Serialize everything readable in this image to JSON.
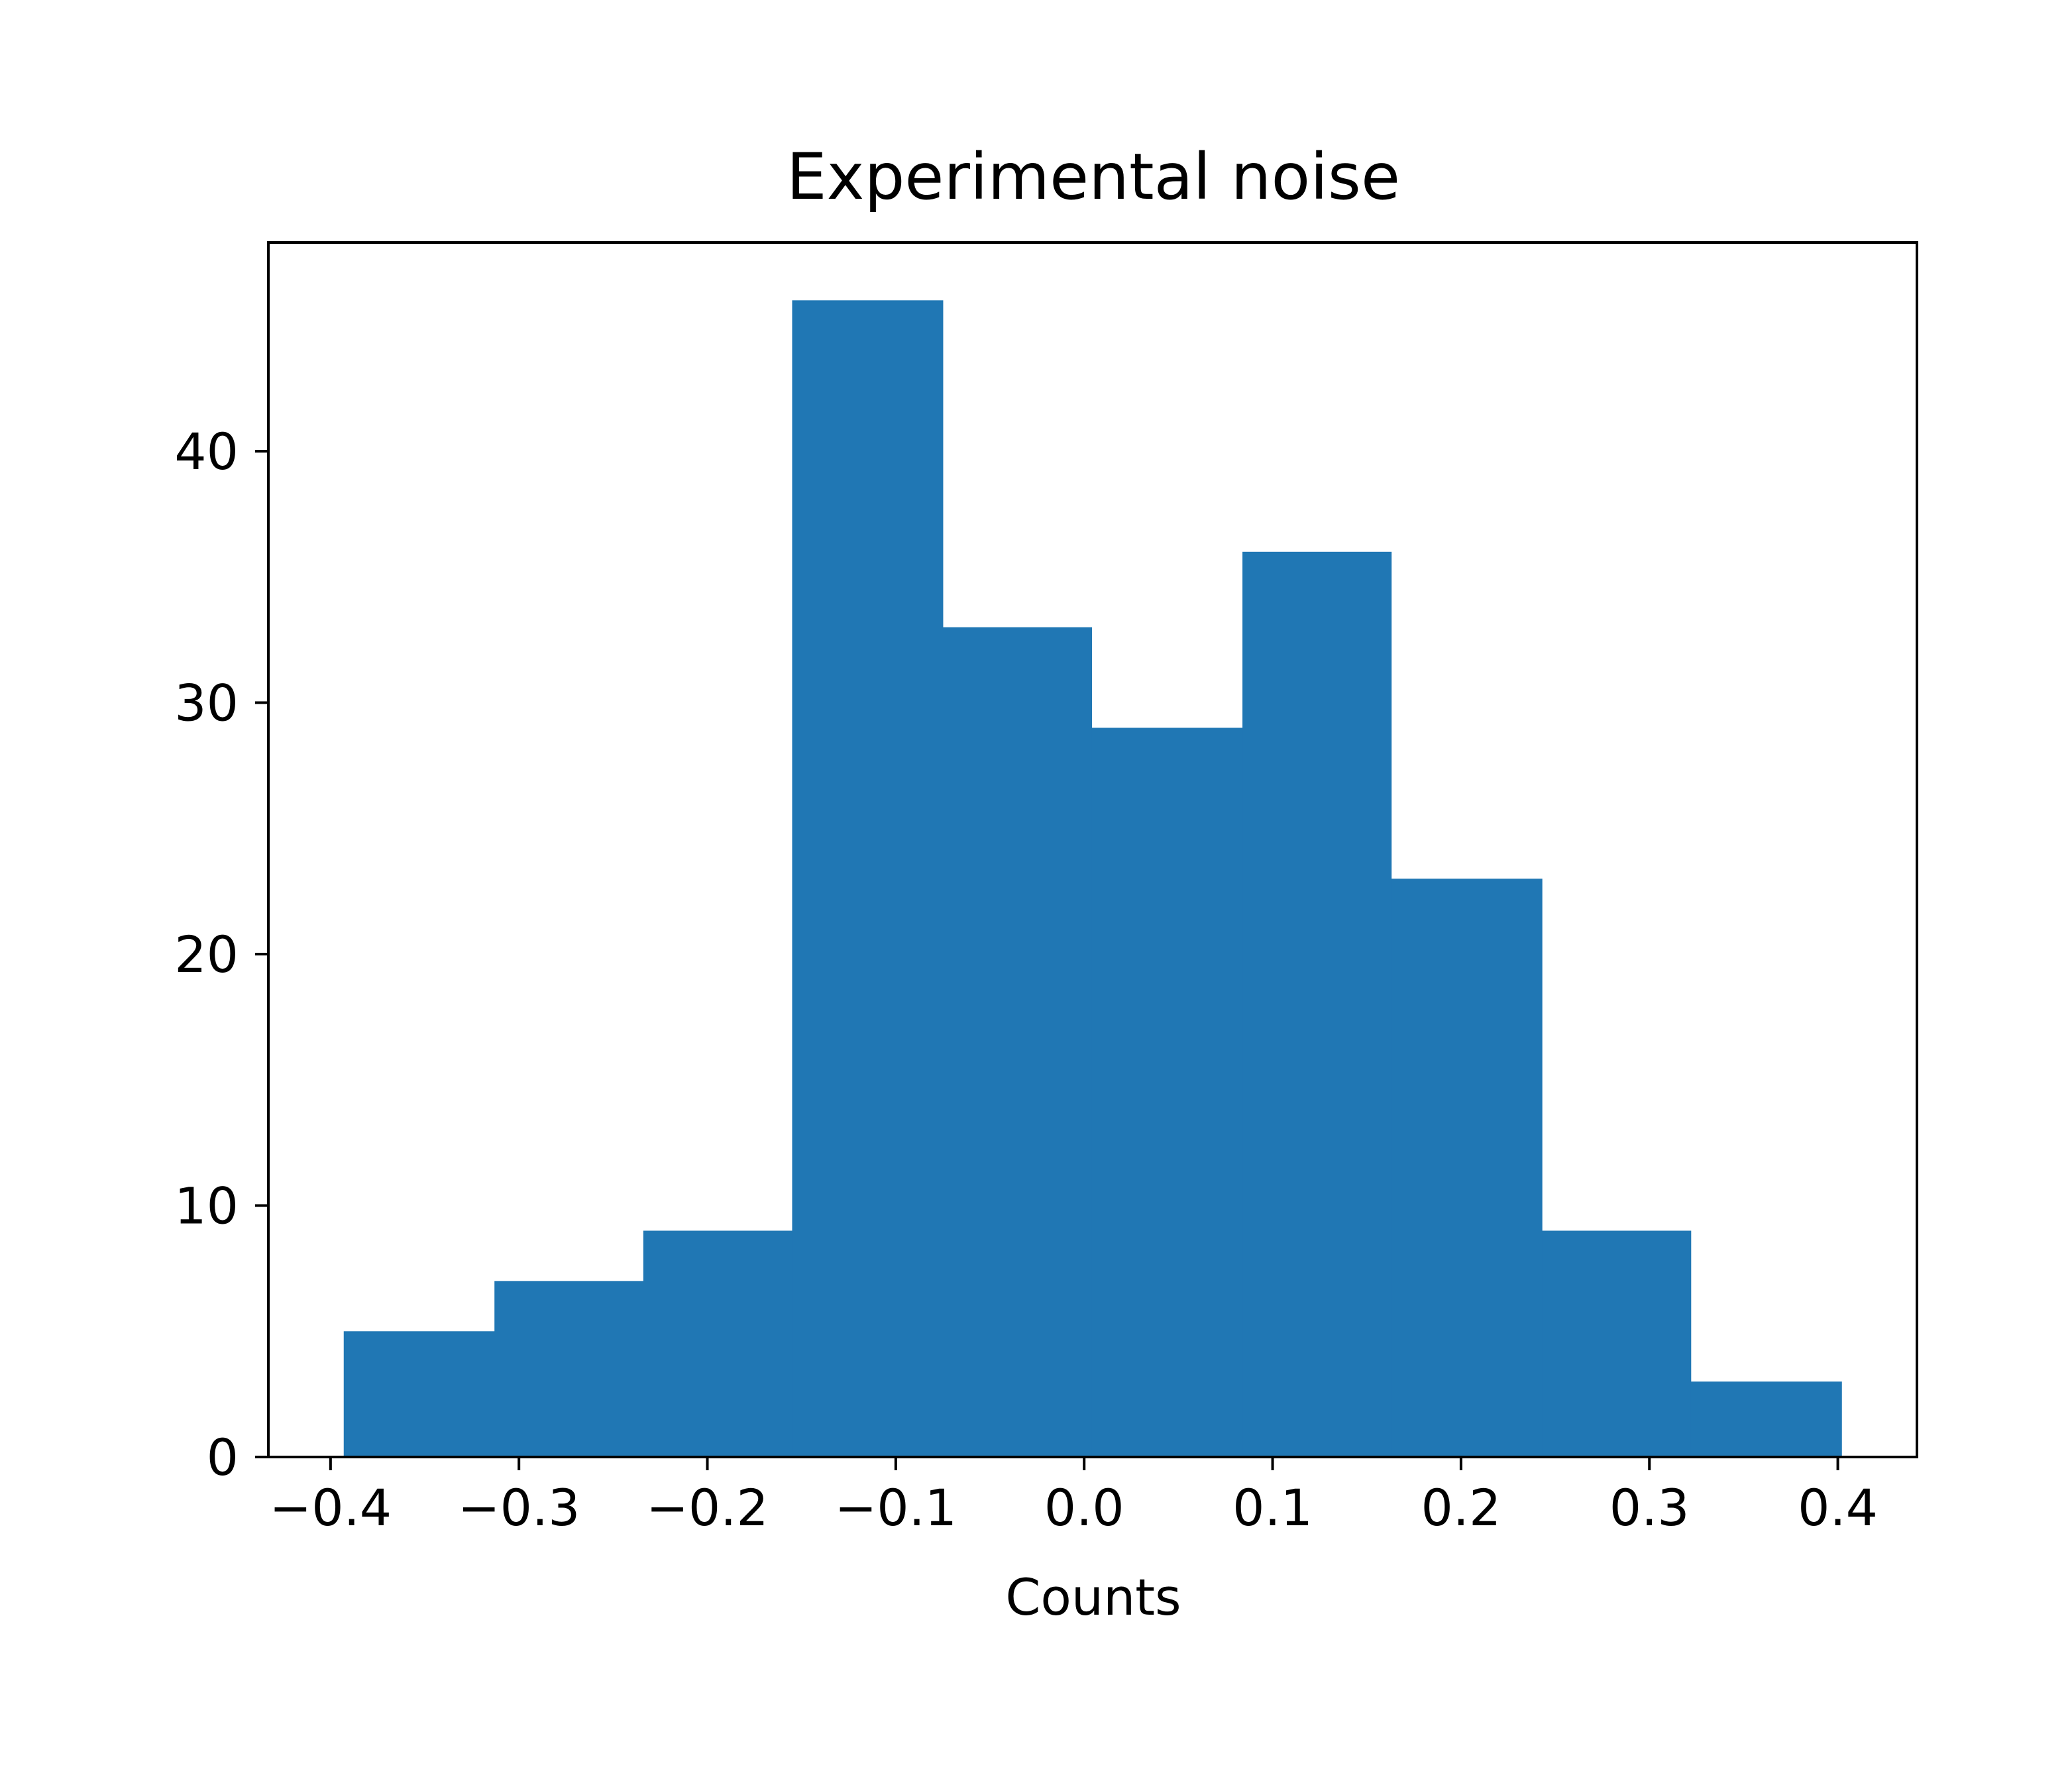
{
  "chart_data": {
    "type": "bar",
    "title": "Experimental noise",
    "xlabel": "Counts",
    "ylabel": "",
    "bins": [
      {
        "x0": -0.393,
        "x1": -0.313,
        "count": 5
      },
      {
        "x0": -0.313,
        "x1": -0.234,
        "count": 7
      },
      {
        "x0": -0.234,
        "x1": -0.155,
        "count": 9
      },
      {
        "x0": -0.155,
        "x1": -0.075,
        "count": 46
      },
      {
        "x0": -0.075,
        "x1": 0.004,
        "count": 33
      },
      {
        "x0": 0.004,
        "x1": 0.084,
        "count": 29
      },
      {
        "x0": 0.084,
        "x1": 0.163,
        "count": 36
      },
      {
        "x0": 0.163,
        "x1": 0.243,
        "count": 23
      },
      {
        "x0": 0.243,
        "x1": 0.322,
        "count": 9
      },
      {
        "x0": 0.322,
        "x1": 0.402,
        "count": 3
      }
    ],
    "xlim": [
      -0.433,
      0.442
    ],
    "ylim": [
      0,
      48.3
    ],
    "xticks": [
      -0.4,
      -0.3,
      -0.2,
      -0.1,
      0.0,
      0.1,
      0.2,
      0.3,
      0.4
    ],
    "xtick_labels": [
      "−0.4",
      "−0.3",
      "−0.2",
      "−0.1",
      "0.0",
      "0.1",
      "0.2",
      "0.3",
      "0.4"
    ],
    "yticks": [
      0,
      10,
      20,
      30,
      40
    ],
    "ytick_labels": [
      "0",
      "10",
      "20",
      "30",
      "40"
    ],
    "grid": false,
    "legend": "none",
    "colors": {
      "bar": "#2077b4",
      "axis": "#000000",
      "background": "#ffffff"
    }
  }
}
